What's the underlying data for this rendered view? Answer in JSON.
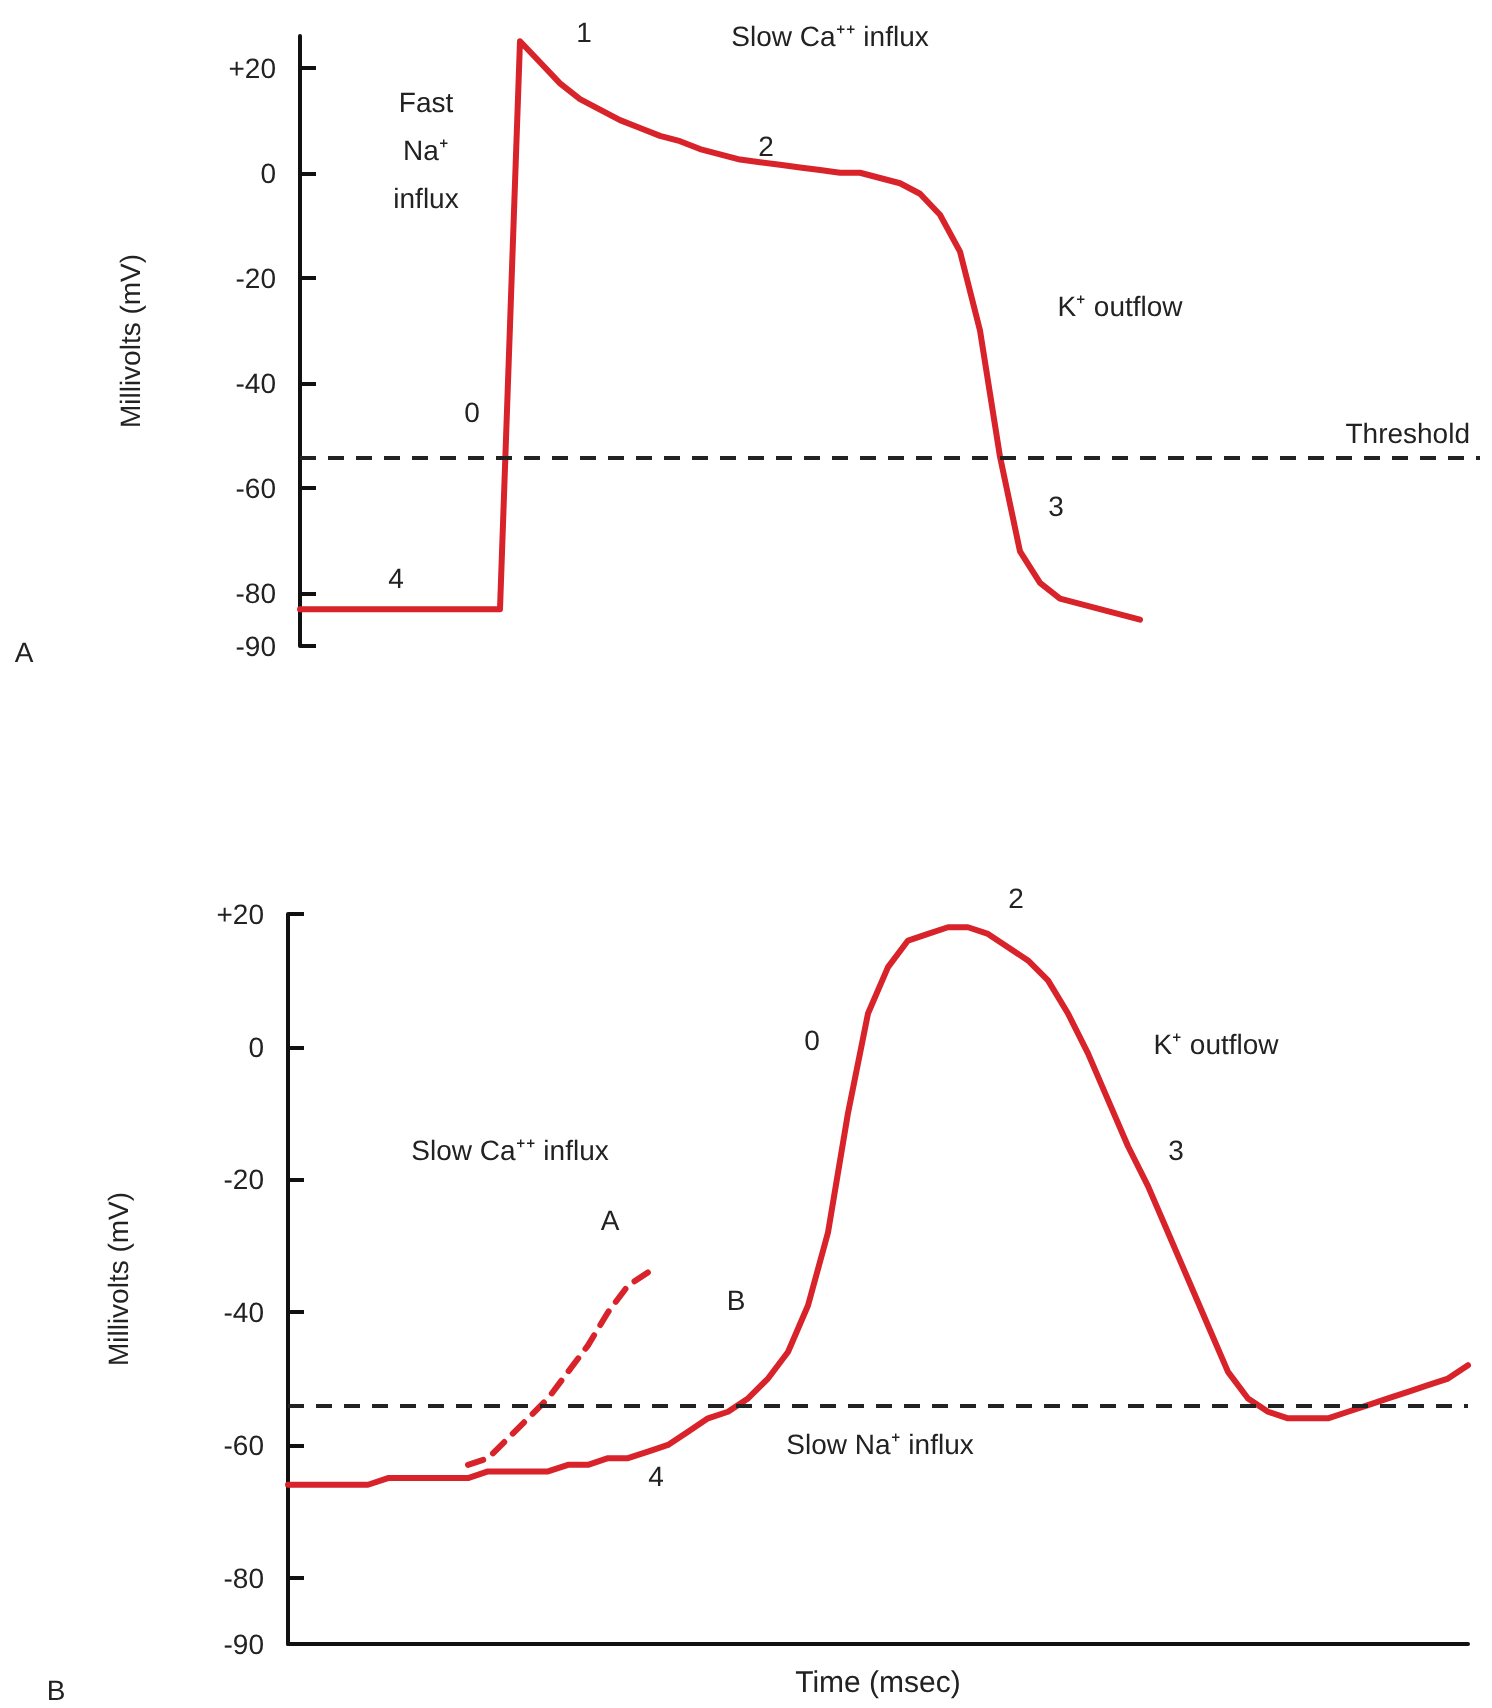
{
  "chart_data": [
    {
      "type": "line",
      "ylabel": "Millivolts (mV)",
      "categories": [
        null,
        null,
        null,
        null,
        null,
        null,
        null,
        null,
        null,
        null,
        null,
        null,
        null,
        null,
        null,
        null,
        null,
        null,
        null,
        null,
        null,
        null,
        null,
        null,
        null,
        null,
        null,
        null,
        null,
        null,
        null,
        null,
        null,
        null,
        null,
        null,
        null,
        null,
        null,
        null,
        null,
        null,
        null,
        null,
        null,
        null,
        null,
        null,
        null,
        null,
        null,
        null,
        null,
        null,
        null,
        null,
        null,
        null,
        null,
        null
      ],
      "series": [
        {
          "color": "#d8232a",
          "values": [
            -83,
            -83,
            -83,
            -83,
            -83,
            -83,
            -83,
            -83,
            -83,
            -83,
            -83,
            25,
            21,
            17,
            14,
            12,
            10,
            8.5,
            7,
            6,
            4.5,
            3.5,
            2.5,
            2,
            1.5,
            1,
            0.5,
            0,
            0,
            -1,
            -2,
            -4,
            -8,
            -15,
            -30,
            -54,
            -72,
            -78,
            -81,
            -82,
            -83,
            -84,
            -85,
            null,
            null,
            null,
            null,
            null,
            null,
            null,
            null,
            null,
            null,
            null,
            null,
            null,
            null,
            null,
            null,
            null
          ]
        }
      ],
      "ylim": [
        -90,
        26
      ],
      "yticks": [
        {
          "value": 20,
          "label": "+20"
        },
        0,
        -20,
        -40,
        -60,
        -80,
        -90
      ],
      "tick_labels": "y",
      "line_style": "solid",
      "ref_lines": [
        {
          "axis": "y",
          "value": -54,
          "label": "Threshold",
          "color": "#222222",
          "line_style": "dashed"
        }
      ],
      "annotations": [
        "1",
        "Slow Ca⁺⁺ influx",
        "Fast Na⁺ influx",
        "2",
        "K⁺ outflow",
        "0",
        "3",
        "4",
        "A"
      ]
    },
    {
      "type": "line",
      "xlabel": "Time (msec)",
      "ylabel": "Millivolts (mV)",
      "categories": [
        null,
        null,
        null,
        null,
        null,
        null,
        null,
        null,
        null,
        null,
        null,
        null,
        null,
        null,
        null,
        null,
        null,
        null,
        null,
        null,
        null,
        null,
        null,
        null,
        null,
        null,
        null,
        null,
        null,
        null,
        null,
        null,
        null,
        null,
        null,
        null,
        null,
        null,
        null,
        null,
        null,
        null,
        null,
        null,
        null,
        null,
        null,
        null,
        null,
        null,
        null,
        null,
        null,
        null,
        null,
        null,
        null,
        null,
        null,
        null
      ],
      "series": [
        {
          "color": "#d8232a",
          "values": [
            -66,
            -66,
            -66,
            -66,
            -66,
            -65,
            -65,
            -65,
            -65,
            -65,
            -64,
            -64,
            -64,
            -64,
            -63,
            -63,
            -62,
            -62,
            -61,
            -60,
            -58,
            -56,
            -55,
            -53,
            -50,
            -46,
            -39,
            -28,
            -10,
            5,
            12,
            16,
            17,
            18,
            18,
            17,
            15,
            13,
            10,
            5,
            -1,
            -8,
            -15,
            -21,
            -28,
            -35,
            -42,
            -49,
            -53,
            -55,
            -56,
            -56,
            -56,
            -55,
            -54,
            -53,
            -52,
            -51,
            -50,
            -48
          ]
        },
        {
          "color": "#d8232a",
          "line_style": "dashed",
          "values": [
            null,
            null,
            null,
            null,
            null,
            null,
            null,
            null,
            null,
            -63,
            -62,
            -59,
            -56,
            -53,
            -49,
            -45,
            -40,
            -36,
            -34,
            null,
            null,
            null,
            null,
            null,
            null,
            null,
            null,
            null,
            null,
            null,
            null,
            null,
            null,
            null,
            null,
            null,
            null,
            null,
            null,
            null,
            null,
            null,
            null,
            null,
            null,
            null,
            null,
            null,
            null,
            null,
            null,
            null,
            null,
            null,
            null,
            null,
            null,
            null,
            null,
            null
          ]
        }
      ],
      "ylim": [
        -90,
        20
      ],
      "yticks": [
        {
          "value": 20,
          "label": "+20"
        },
        0,
        -20,
        -40,
        -60,
        -80,
        -90
      ],
      "tick_labels": "y",
      "line_style": "solid",
      "ref_lines": [
        {
          "axis": "y",
          "value": -54,
          "color": "#222222",
          "line_style": "dashed"
        }
      ],
      "annotations": [
        "2",
        "0",
        "K⁺ outflow",
        "Slow Ca⁺⁺ influx",
        "3",
        "A",
        "B",
        "Slow Na⁺ influx",
        "4",
        "B"
      ]
    }
  ]
}
